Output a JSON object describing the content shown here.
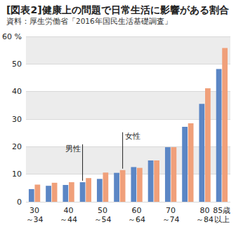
{
  "chart_data": {
    "type": "bar",
    "title": "[図表2]健康上の問題で日常生活に影響がある割合",
    "subtitle": "資料：厚生労働省「2016年国民生活基礎調査」",
    "categories": [
      "30\n～34",
      null,
      "40\n～44",
      null,
      "50\n～54",
      null,
      "60\n～64",
      null,
      "70\n～74",
      null,
      "80\n～84",
      "85歳\n以上"
    ],
    "series": [
      {
        "name": "男性",
        "color": "#5b86c5",
        "values": [
          4.6,
          5.8,
          6.1,
          7.1,
          8.3,
          10.5,
          12.6,
          15.0,
          19.8,
          27.2,
          35.5,
          48.2
        ]
      },
      {
        "name": "女性",
        "color": "#f0a07a",
        "values": [
          6.2,
          6.9,
          7.1,
          8.6,
          10.6,
          11.5,
          12.3,
          15.0,
          19.8,
          28.5,
          41.2,
          55.8
        ]
      }
    ],
    "ylim": [
      0,
      60
    ],
    "yticks": [
      0,
      10,
      20,
      30,
      40,
      50,
      {
        "value": 60,
        "label": "60 %"
      }
    ],
    "grid": true
  }
}
